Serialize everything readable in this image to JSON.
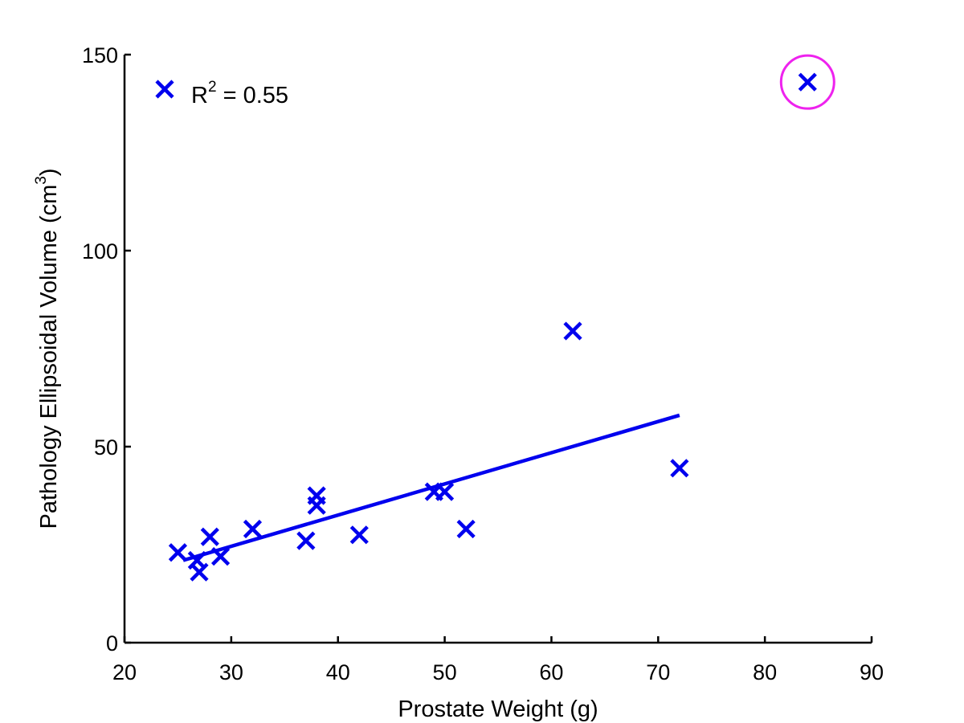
{
  "chart_data": {
    "type": "scatter",
    "xlabel": "Prostate Weight (g)",
    "ylabel_main": "Pathology Ellipsoidal Volume (cm",
    "ylabel_sup": "3",
    "ylabel_close": ")",
    "xlim": [
      20,
      90
    ],
    "ylim": [
      0,
      150
    ],
    "xticks": [
      20,
      30,
      40,
      50,
      60,
      70,
      80,
      90
    ],
    "yticks": [
      0,
      50,
      100,
      150
    ],
    "grid": false,
    "legend": {
      "position": "top-left",
      "text_main": "R",
      "text_sup": "2",
      "text_rest": " = 0.55"
    },
    "series": [
      {
        "marker": "x",
        "color": "#0000ee",
        "points": [
          {
            "x": 25,
            "y": 23
          },
          {
            "x": 26.8,
            "y": 21
          },
          {
            "x": 27,
            "y": 18
          },
          {
            "x": 28,
            "y": 27
          },
          {
            "x": 29,
            "y": 22
          },
          {
            "x": 32,
            "y": 29
          },
          {
            "x": 37,
            "y": 26
          },
          {
            "x": 38,
            "y": 35
          },
          {
            "x": 38,
            "y": 37.5
          },
          {
            "x": 42,
            "y": 27.5
          },
          {
            "x": 49,
            "y": 38.5
          },
          {
            "x": 50,
            "y": 38.5
          },
          {
            "x": 52,
            "y": 29
          },
          {
            "x": 62,
            "y": 79.5
          },
          {
            "x": 72,
            "y": 44.5
          },
          {
            "x": 84,
            "y": 143
          }
        ]
      }
    ],
    "fit_line": {
      "color": "#0000ee",
      "x": [
        25.5,
        72
      ],
      "y": [
        21,
        58
      ]
    },
    "highlight": {
      "color": "#ee22ee",
      "x": 84,
      "y": 143
    }
  }
}
